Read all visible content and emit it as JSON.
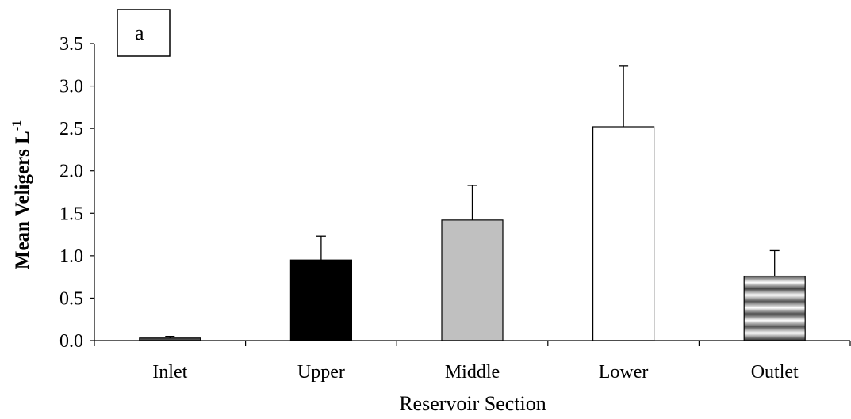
{
  "chart_data": {
    "type": "bar",
    "panel_label": "a",
    "categories": [
      "Inlet",
      "Upper",
      "Middle",
      "Lower",
      "Outlet"
    ],
    "values": [
      0.03,
      0.95,
      1.42,
      2.52,
      0.76
    ],
    "errors": [
      0.02,
      0.28,
      0.41,
      0.72,
      0.3
    ],
    "bar_fills": [
      "pattern-stripes",
      "#000000",
      "#c0c0c0",
      "#ffffff",
      "pattern-stripes"
    ],
    "xlabel": "Reservoir Section",
    "ylabel": {
      "main": "Mean  Veligers L",
      "superscript": "-1"
    },
    "ylim": [
      0,
      3.5
    ],
    "yticks": [
      "0.0",
      "0.5",
      "1.0",
      "1.5",
      "2.0",
      "2.5",
      "3.0",
      "3.5"
    ],
    "grid": false,
    "legend": "none"
  }
}
